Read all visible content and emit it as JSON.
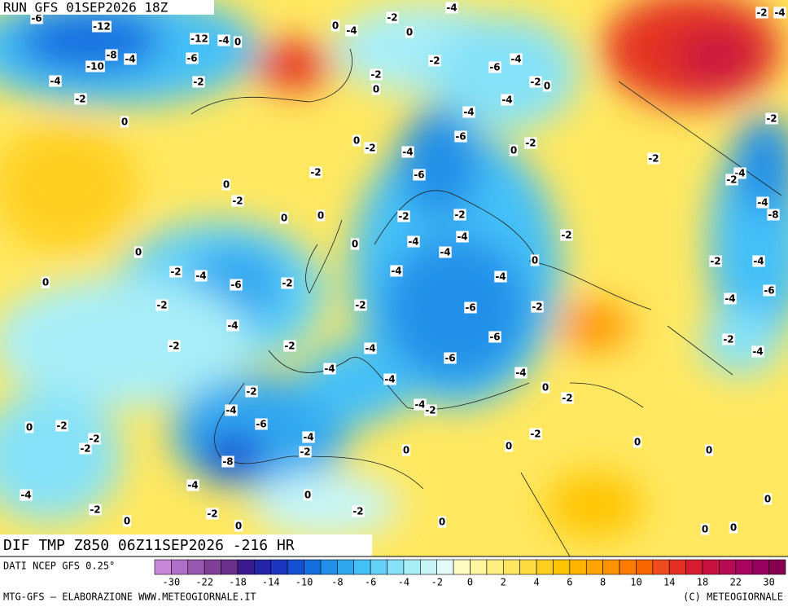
{
  "header": {
    "run": "RUN GFS 01SEP2026 18Z"
  },
  "footer": {
    "field": "DIF TMP Z850 06Z11SEP2026 -216 HR",
    "source": "DATI NCEP GFS 0.25°",
    "credit": "MTG-GFS — ELABORAZIONE WWW.METEOGIORNALE.IT",
    "copyright": "(C) METEOGIORNALE"
  },
  "colorbar": {
    "colors": [
      "#c888d8",
      "#b070c8",
      "#9858b0",
      "#804098",
      "#683088",
      "#3a1c90",
      "#2424a8",
      "#1a34c0",
      "#1450d4",
      "#1470e0",
      "#2090e8",
      "#30a8f0",
      "#44c0f8",
      "#64d2f8",
      "#86e2f8",
      "#a8eef8",
      "#c8f6f8",
      "#e4fcfa",
      "#fffcc4",
      "#fff6a0",
      "#ffee80",
      "#ffe660",
      "#ffdc40",
      "#ffd020",
      "#ffc400",
      "#ffb400",
      "#ffa400",
      "#ff9200",
      "#ff7c00",
      "#f86400",
      "#f04a20",
      "#e43024",
      "#d81c30",
      "#c81240",
      "#b80a50",
      "#a80460",
      "#980060",
      "#880050"
    ],
    "labels": [
      -30,
      -22,
      -18,
      -14,
      -10,
      -8,
      -6,
      -4,
      -2,
      0,
      2,
      4,
      6,
      8,
      10,
      14,
      18,
      22,
      30
    ]
  },
  "map_labels": [
    -6,
    -12,
    -12,
    -4,
    0,
    -8,
    -4,
    -10,
    -6,
    -4,
    -2,
    -2,
    0,
    0,
    -4,
    -2,
    0,
    -4,
    -2,
    -2,
    0,
    -6,
    -4,
    -2,
    0,
    -4,
    -4,
    -6,
    0,
    -2,
    -4,
    0,
    -2,
    -2,
    -6,
    0,
    -2,
    0,
    0,
    -2,
    -2,
    0,
    0,
    -4,
    -4,
    -4,
    -2,
    0,
    -4,
    -4,
    -2,
    -4,
    -6,
    -2,
    0,
    -2,
    -2,
    -6,
    -2,
    -4,
    -6,
    -2,
    -2,
    -4,
    -6,
    -4,
    -4,
    -4,
    0,
    -2,
    -4,
    -4,
    -2,
    -2,
    -6,
    -4,
    -2,
    0,
    0,
    -2,
    0,
    -2,
    -2,
    -2,
    -8,
    -4,
    0,
    -4,
    -2,
    0,
    -2,
    -2,
    0,
    0,
    0,
    0,
    0,
    0,
    0,
    -2,
    -4,
    -2,
    -2,
    -2,
    -4,
    -4,
    -8,
    -2,
    -4,
    -4,
    -6,
    -2,
    -4
  ]
}
